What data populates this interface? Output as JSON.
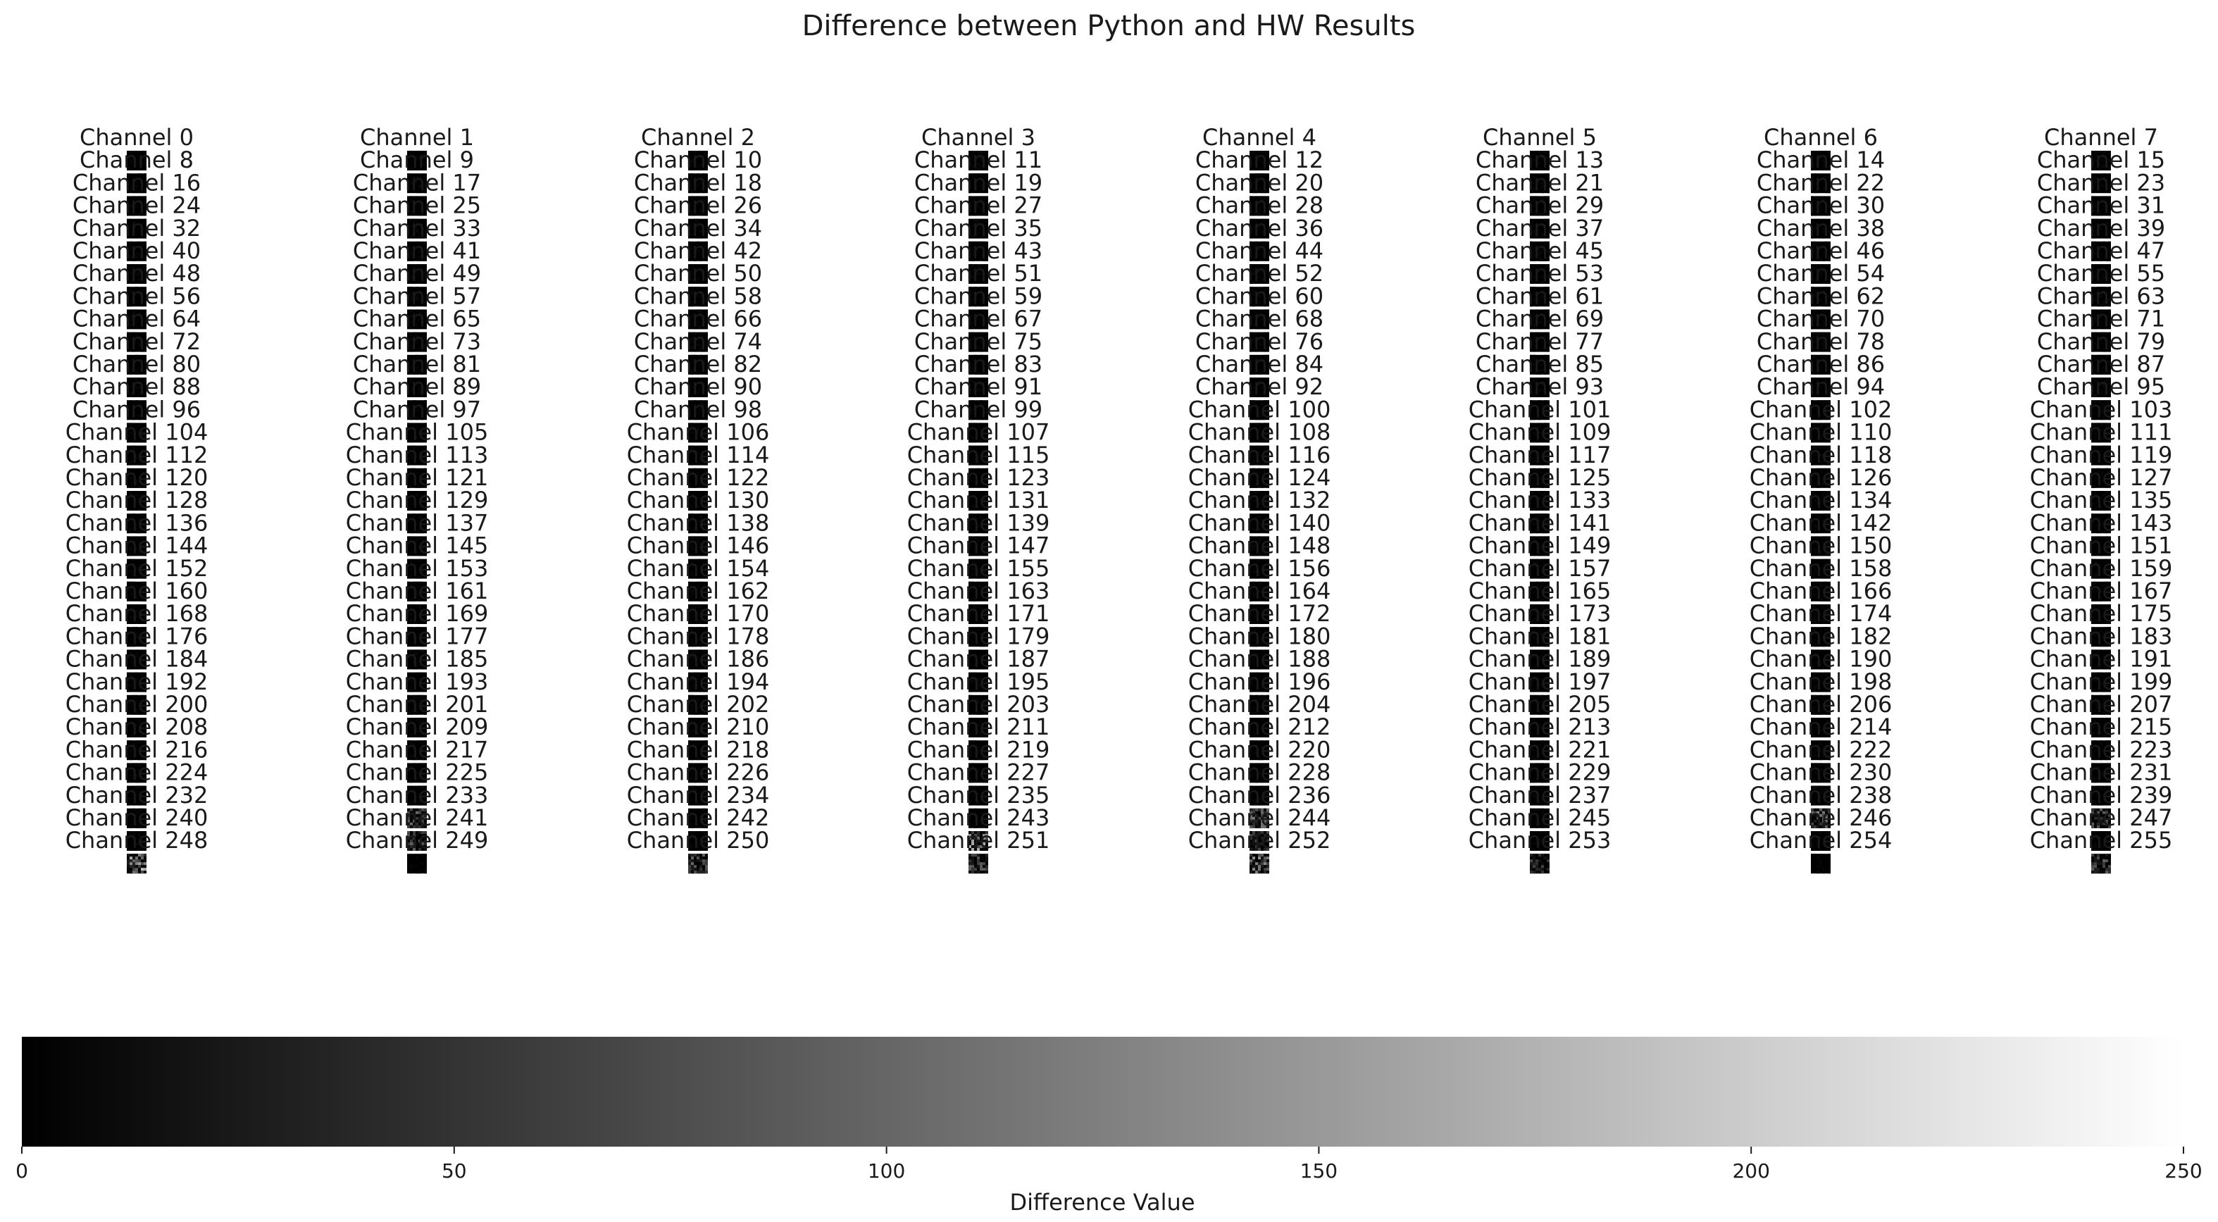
{
  "chart_data": {
    "type": "heatmap",
    "title": "Difference between Python and HW Results",
    "colorbar": {
      "label": "Difference Value",
      "range": [
        0,
        250
      ],
      "ticks": [
        0,
        50,
        100,
        150,
        200,
        250
      ],
      "colormap": "gray",
      "color_low": "#000000",
      "color_high": "#ffffff"
    },
    "grid": {
      "columns": 8,
      "rows": 32,
      "channel_count": 256,
      "channel_label_prefix": "Channel "
    },
    "panels": [
      {
        "channel": 0,
        "max_diff": 4
      },
      {
        "channel": 1,
        "max_diff": 4
      },
      {
        "channel": 2,
        "max_diff": 4
      },
      {
        "channel": 3,
        "max_diff": 5
      },
      {
        "channel": 4,
        "max_diff": 4
      },
      {
        "channel": 5,
        "max_diff": 4
      },
      {
        "channel": 6,
        "max_diff": 4
      },
      {
        "channel": 7,
        "max_diff": 4
      },
      {
        "channel": 8,
        "max_diff": 4
      },
      {
        "channel": 9,
        "max_diff": 4
      },
      {
        "channel": 10,
        "max_diff": 4
      },
      {
        "channel": 11,
        "max_diff": 4
      },
      {
        "channel": 12,
        "max_diff": 4
      },
      {
        "channel": 13,
        "max_diff": 4
      },
      {
        "channel": 14,
        "max_diff": 4
      },
      {
        "channel": 15,
        "max_diff": 4
      },
      {
        "channel": 16,
        "max_diff": 4
      },
      {
        "channel": 17,
        "max_diff": 4
      },
      {
        "channel": 18,
        "max_diff": 4
      },
      {
        "channel": 19,
        "max_diff": 4
      },
      {
        "channel": 20,
        "max_diff": 4
      },
      {
        "channel": 21,
        "max_diff": 4
      },
      {
        "channel": 22,
        "max_diff": 4
      },
      {
        "channel": 23,
        "max_diff": 4
      },
      {
        "channel": 24,
        "max_diff": 4
      },
      {
        "channel": 25,
        "max_diff": 4
      },
      {
        "channel": 26,
        "max_diff": 4
      },
      {
        "channel": 27,
        "max_diff": 4
      },
      {
        "channel": 28,
        "max_diff": 4
      },
      {
        "channel": 29,
        "max_diff": 4
      },
      {
        "channel": 30,
        "max_diff": 4
      },
      {
        "channel": 31,
        "max_diff": 4
      },
      {
        "channel": 32,
        "max_diff": 4
      },
      {
        "channel": 33,
        "max_diff": 4
      },
      {
        "channel": 34,
        "max_diff": 4
      },
      {
        "channel": 35,
        "max_diff": 4
      },
      {
        "channel": 36,
        "max_diff": 4
      },
      {
        "channel": 37,
        "max_diff": 4
      },
      {
        "channel": 38,
        "max_diff": 4
      },
      {
        "channel": 39,
        "max_diff": 4
      },
      {
        "channel": 40,
        "max_diff": 4
      },
      {
        "channel": 41,
        "max_diff": 4
      },
      {
        "channel": 42,
        "max_diff": 4
      },
      {
        "channel": 43,
        "max_diff": 4
      },
      {
        "channel": 44,
        "max_diff": 4
      },
      {
        "channel": 45,
        "max_diff": 4
      },
      {
        "channel": 46,
        "max_diff": 4
      },
      {
        "channel": 47,
        "max_diff": 4
      },
      {
        "channel": 48,
        "max_diff": 4
      },
      {
        "channel": 49,
        "max_diff": 4
      },
      {
        "channel": 50,
        "max_diff": 4
      },
      {
        "channel": 51,
        "max_diff": 4
      },
      {
        "channel": 52,
        "max_diff": 4
      },
      {
        "channel": 53,
        "max_diff": 4
      },
      {
        "channel": 54,
        "max_diff": 4
      },
      {
        "channel": 55,
        "max_diff": 4
      },
      {
        "channel": 56,
        "max_diff": 4
      },
      {
        "channel": 57,
        "max_diff": 4
      },
      {
        "channel": 58,
        "max_diff": 4
      },
      {
        "channel": 59,
        "max_diff": 4
      },
      {
        "channel": 60,
        "max_diff": 4
      },
      {
        "channel": 61,
        "max_diff": 4
      },
      {
        "channel": 62,
        "max_diff": 4
      },
      {
        "channel": 63,
        "max_diff": 4
      },
      {
        "channel": 64,
        "max_diff": 4
      },
      {
        "channel": 65,
        "max_diff": 4
      },
      {
        "channel": 66,
        "max_diff": 4
      },
      {
        "channel": 67,
        "max_diff": 4
      },
      {
        "channel": 68,
        "max_diff": 4
      },
      {
        "channel": 69,
        "max_diff": 4
      },
      {
        "channel": 70,
        "max_diff": 4
      },
      {
        "channel": 71,
        "max_diff": 4
      },
      {
        "channel": 72,
        "max_diff": 4
      },
      {
        "channel": 73,
        "max_diff": 4
      },
      {
        "channel": 74,
        "max_diff": 4
      },
      {
        "channel": 75,
        "max_diff": 4
      },
      {
        "channel": 76,
        "max_diff": 4
      },
      {
        "channel": 77,
        "max_diff": 4
      },
      {
        "channel": 78,
        "max_diff": 4
      },
      {
        "channel": 79,
        "max_diff": 4
      },
      {
        "channel": 80,
        "max_diff": 4
      },
      {
        "channel": 81,
        "max_diff": 4
      },
      {
        "channel": 82,
        "max_diff": 4
      },
      {
        "channel": 83,
        "max_diff": 4
      },
      {
        "channel": 84,
        "max_diff": 4
      },
      {
        "channel": 85,
        "max_diff": 4
      },
      {
        "channel": 86,
        "max_diff": 4
      },
      {
        "channel": 87,
        "max_diff": 4
      },
      {
        "channel": 88,
        "max_diff": 4
      },
      {
        "channel": 89,
        "max_diff": 4
      },
      {
        "channel": 90,
        "max_diff": 4
      },
      {
        "channel": 91,
        "max_diff": 4
      },
      {
        "channel": 92,
        "max_diff": 4
      },
      {
        "channel": 93,
        "max_diff": 4
      },
      {
        "channel": 94,
        "max_diff": 4
      },
      {
        "channel": 95,
        "max_diff": 4
      },
      {
        "channel": 96,
        "max_diff": 4
      },
      {
        "channel": 97,
        "max_diff": 4
      },
      {
        "channel": 98,
        "max_diff": 4
      },
      {
        "channel": 99,
        "max_diff": 4
      },
      {
        "channel": 100,
        "max_diff": 4
      },
      {
        "channel": 101,
        "max_diff": 4
      },
      {
        "channel": 102,
        "max_diff": 4
      },
      {
        "channel": 103,
        "max_diff": 4
      },
      {
        "channel": 104,
        "max_diff": 4
      },
      {
        "channel": 105,
        "max_diff": 4
      },
      {
        "channel": 106,
        "max_diff": 4
      },
      {
        "channel": 107,
        "max_diff": 4
      },
      {
        "channel": 108,
        "max_diff": 4
      },
      {
        "channel": 109,
        "max_diff": 4
      },
      {
        "channel": 110,
        "max_diff": 4
      },
      {
        "channel": 111,
        "max_diff": 4
      },
      {
        "channel": 112,
        "max_diff": 4
      },
      {
        "channel": 113,
        "max_diff": 4
      },
      {
        "channel": 114,
        "max_diff": 4
      },
      {
        "channel": 115,
        "max_diff": 4
      },
      {
        "channel": 116,
        "max_diff": 4
      },
      {
        "channel": 117,
        "max_diff": 4
      },
      {
        "channel": 118,
        "max_diff": 4
      },
      {
        "channel": 119,
        "max_diff": 4
      },
      {
        "channel": 120,
        "max_diff": 4
      },
      {
        "channel": 121,
        "max_diff": 4
      },
      {
        "channel": 122,
        "max_diff": 4
      },
      {
        "channel": 123,
        "max_diff": 4
      },
      {
        "channel": 124,
        "max_diff": 4
      },
      {
        "channel": 125,
        "max_diff": 4
      },
      {
        "channel": 126,
        "max_diff": 4
      },
      {
        "channel": 127,
        "max_diff": 4
      },
      {
        "channel": 128,
        "max_diff": 4
      },
      {
        "channel": 129,
        "max_diff": 4
      },
      {
        "channel": 130,
        "max_diff": 4
      },
      {
        "channel": 131,
        "max_diff": 4
      },
      {
        "channel": 132,
        "max_diff": 4
      },
      {
        "channel": 133,
        "max_diff": 4
      },
      {
        "channel": 134,
        "max_diff": 4
      },
      {
        "channel": 135,
        "max_diff": 4
      },
      {
        "channel": 136,
        "max_diff": 4
      },
      {
        "channel": 137,
        "max_diff": 4
      },
      {
        "channel": 138,
        "max_diff": 4
      },
      {
        "channel": 139,
        "max_diff": 4
      },
      {
        "channel": 140,
        "max_diff": 4
      },
      {
        "channel": 141,
        "max_diff": 4
      },
      {
        "channel": 142,
        "max_diff": 4
      },
      {
        "channel": 143,
        "max_diff": 4
      },
      {
        "channel": 144,
        "max_diff": 4
      },
      {
        "channel": 145,
        "max_diff": 4
      },
      {
        "channel": 146,
        "max_diff": 4
      },
      {
        "channel": 147,
        "max_diff": 4
      },
      {
        "channel": 148,
        "max_diff": 4
      },
      {
        "channel": 149,
        "max_diff": 4
      },
      {
        "channel": 150,
        "max_diff": 4
      },
      {
        "channel": 151,
        "max_diff": 4
      },
      {
        "channel": 152,
        "max_diff": 4
      },
      {
        "channel": 153,
        "max_diff": 4
      },
      {
        "channel": 154,
        "max_diff": 4
      },
      {
        "channel": 155,
        "max_diff": 4
      },
      {
        "channel": 156,
        "max_diff": 4
      },
      {
        "channel": 157,
        "max_diff": 4
      },
      {
        "channel": 158,
        "max_diff": 4
      },
      {
        "channel": 159,
        "max_diff": 4
      },
      {
        "channel": 160,
        "max_diff": 4
      },
      {
        "channel": 161,
        "max_diff": 4
      },
      {
        "channel": 162,
        "max_diff": 4
      },
      {
        "channel": 163,
        "max_diff": 4
      },
      {
        "channel": 164,
        "max_diff": 4
      },
      {
        "channel": 165,
        "max_diff": 4
      },
      {
        "channel": 166,
        "max_diff": 4
      },
      {
        "channel": 167,
        "max_diff": 4
      },
      {
        "channel": 168,
        "max_diff": 4
      },
      {
        "channel": 169,
        "max_diff": 4
      },
      {
        "channel": 170,
        "max_diff": 4
      },
      {
        "channel": 171,
        "max_diff": 4
      },
      {
        "channel": 172,
        "max_diff": 4
      },
      {
        "channel": 173,
        "max_diff": 4
      },
      {
        "channel": 174,
        "max_diff": 4
      },
      {
        "channel": 175,
        "max_diff": 4
      },
      {
        "channel": 176,
        "max_diff": 4
      },
      {
        "channel": 177,
        "max_diff": 4
      },
      {
        "channel": 178,
        "max_diff": 4
      },
      {
        "channel": 179,
        "max_diff": 4
      },
      {
        "channel": 180,
        "max_diff": 4
      },
      {
        "channel": 181,
        "max_diff": 4
      },
      {
        "channel": 182,
        "max_diff": 4
      },
      {
        "channel": 183,
        "max_diff": 4
      },
      {
        "channel": 184,
        "max_diff": 4
      },
      {
        "channel": 185,
        "max_diff": 4
      },
      {
        "channel": 186,
        "max_diff": 4
      },
      {
        "channel": 187,
        "max_diff": 4
      },
      {
        "channel": 188,
        "max_diff": 4
      },
      {
        "channel": 189,
        "max_diff": 4
      },
      {
        "channel": 190,
        "max_diff": 4
      },
      {
        "channel": 191,
        "max_diff": 4
      },
      {
        "channel": 192,
        "max_diff": 4
      },
      {
        "channel": 193,
        "max_diff": 4
      },
      {
        "channel": 194,
        "max_diff": 4
      },
      {
        "channel": 195,
        "max_diff": 4
      },
      {
        "channel": 196,
        "max_diff": 4
      },
      {
        "channel": 197,
        "max_diff": 4
      },
      {
        "channel": 198,
        "max_diff": 4
      },
      {
        "channel": 199,
        "max_diff": 4
      },
      {
        "channel": 200,
        "max_diff": 4
      },
      {
        "channel": 201,
        "max_diff": 4
      },
      {
        "channel": 202,
        "max_diff": 4
      },
      {
        "channel": 203,
        "max_diff": 4
      },
      {
        "channel": 204,
        "max_diff": 4
      },
      {
        "channel": 205,
        "max_diff": 4
      },
      {
        "channel": 206,
        "max_diff": 4
      },
      {
        "channel": 207,
        "max_diff": 4
      },
      {
        "channel": 208,
        "max_diff": 4
      },
      {
        "channel": 209,
        "max_diff": 4
      },
      {
        "channel": 210,
        "max_diff": 4
      },
      {
        "channel": 211,
        "max_diff": 4
      },
      {
        "channel": 212,
        "max_diff": 4
      },
      {
        "channel": 213,
        "max_diff": 4
      },
      {
        "channel": 214,
        "max_diff": 4
      },
      {
        "channel": 215,
        "max_diff": 4
      },
      {
        "channel": 216,
        "max_diff": 4
      },
      {
        "channel": 217,
        "max_diff": 4
      },
      {
        "channel": 218,
        "max_diff": 4
      },
      {
        "channel": 219,
        "max_diff": 4
      },
      {
        "channel": 220,
        "max_diff": 4
      },
      {
        "channel": 221,
        "max_diff": 4
      },
      {
        "channel": 222,
        "max_diff": 4
      },
      {
        "channel": 223,
        "max_diff": 4
      },
      {
        "channel": 224,
        "max_diff": 4
      },
      {
        "channel": 225,
        "max_diff": 4
      },
      {
        "channel": 226,
        "max_diff": 4
      },
      {
        "channel": 227,
        "max_diff": 4
      },
      {
        "channel": 228,
        "max_diff": 4
      },
      {
        "channel": 229,
        "max_diff": 4
      },
      {
        "channel": 230,
        "max_diff": 4
      },
      {
        "channel": 231,
        "max_diff": 4
      },
      {
        "channel": 232,
        "max_diff": 4
      },
      {
        "channel": 233,
        "max_diff": 60
      },
      {
        "channel": 234,
        "max_diff": 4
      },
      {
        "channel": 235,
        "max_diff": 4
      },
      {
        "channel": 236,
        "max_diff": 70
      },
      {
        "channel": 237,
        "max_diff": 4
      },
      {
        "channel": 238,
        "max_diff": 70
      },
      {
        "channel": 239,
        "max_diff": 50
      },
      {
        "channel": 240,
        "max_diff": 4
      },
      {
        "channel": 241,
        "max_diff": 50
      },
      {
        "channel": 242,
        "max_diff": 4
      },
      {
        "channel": 243,
        "max_diff": 90
      },
      {
        "channel": 244,
        "max_diff": 40
      },
      {
        "channel": 245,
        "max_diff": 4
      },
      {
        "channel": 246,
        "max_diff": 4
      },
      {
        "channel": 247,
        "max_diff": 4
      },
      {
        "channel": 248,
        "max_diff": 110
      },
      {
        "channel": 249,
        "max_diff": 4
      },
      {
        "channel": 250,
        "max_diff": 60
      },
      {
        "channel": 251,
        "max_diff": 50
      },
      {
        "channel": 252,
        "max_diff": 80
      },
      {
        "channel": 253,
        "max_diff": 40
      },
      {
        "channel": 254,
        "max_diff": 4
      },
      {
        "channel": 255,
        "max_diff": 50
      }
    ]
  }
}
